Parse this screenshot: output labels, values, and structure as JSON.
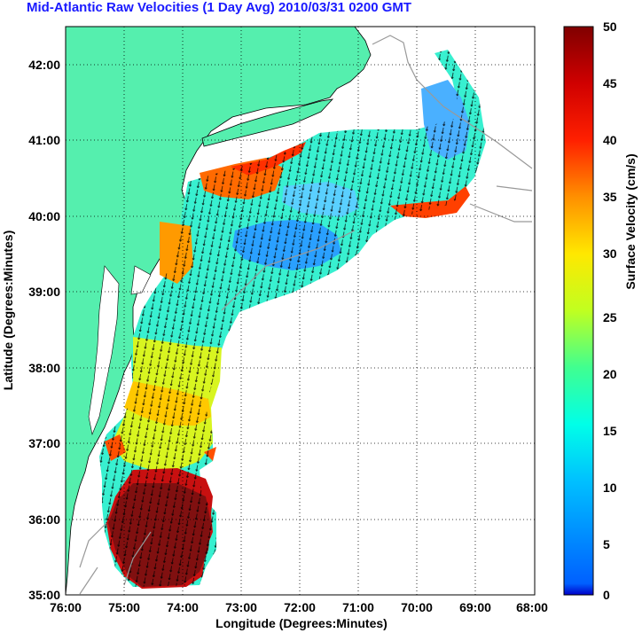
{
  "title": "Mid-Atlantic Raw Velocities (1 Day Avg) 2010/03/31 0200 GMT",
  "map": {
    "xlabel": "Longitude (Degrees:Minutes)",
    "ylabel": "Latitude (Degrees:Minutes)",
    "x_ticks": [
      "76:00",
      "75:00",
      "74:00",
      "73:00",
      "72:00",
      "71:00",
      "70:00",
      "69:00",
      "68:00"
    ],
    "y_ticks": [
      "35:00",
      "36:00",
      "37:00",
      "38:00",
      "39:00",
      "40:00",
      "41:00",
      "42:00"
    ],
    "lon_range": [
      -76,
      -68
    ],
    "lat_range": [
      35,
      42.5
    ],
    "grid": "dotted",
    "land_color": "#55efae",
    "bathymetry_color": "#999999"
  },
  "colorbar": {
    "label": "Surface Velocity (cm/s)",
    "ticks": [
      "0",
      "5",
      "10",
      "15",
      "20",
      "25",
      "30",
      "35",
      "40",
      "45",
      "50"
    ],
    "range": [
      0,
      50
    ],
    "colormap": "jet"
  }
}
